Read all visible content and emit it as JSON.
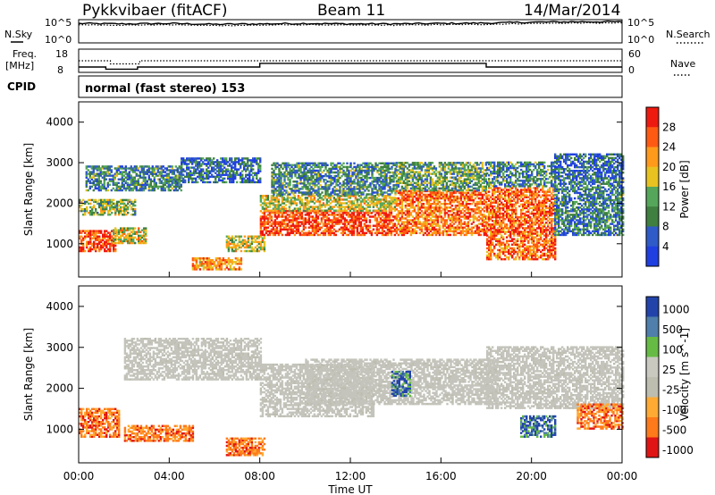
{
  "header": {
    "station": "Pykkvibaer (fitACF)",
    "beam": "Beam 11",
    "date": "14/Mar/2014"
  },
  "colors": {
    "power_scale": [
      "#1f3fe0",
      "#2f5bc8",
      "#3f7f3f",
      "#55a65a",
      "#e8c220",
      "#ff9a1a",
      "#ff5a12",
      "#ee1a10"
    ],
    "velocity_scale": [
      "#e01414",
      "#ff7a1a",
      "#ffaa33",
      "#bdbdb0",
      "#c9c9c0",
      "#66bb44",
      "#4f7faa",
      "#2244aa"
    ],
    "ground_scatter": "#c4c4bc"
  },
  "chart_data": [
    {
      "type": "line",
      "name": "noise-panel",
      "left_label": "N.Sky",
      "right_label": "N.Search",
      "left_ticks": [
        "10^5",
        "10^0"
      ],
      "right_ticks": [
        "10^5",
        "10^0"
      ],
      "series": [
        {
          "name": "N.Sky",
          "style": "solid",
          "x": [
            0,
            2,
            4,
            6,
            8,
            10,
            12,
            14,
            16,
            18,
            20,
            22,
            24
          ],
          "y": [
            4.6,
            4.5,
            4.6,
            4.4,
            4.5,
            4.6,
            4.5,
            4.5,
            4.6,
            4.7,
            4.9,
            5.0,
            5.0
          ]
        },
        {
          "name": "N.Search",
          "style": "dotted",
          "x": [
            0,
            2,
            4,
            6,
            8,
            10,
            12,
            14,
            16,
            18,
            20,
            22,
            24
          ],
          "y": [
            4.3,
            4.2,
            4.3,
            4.1,
            4.2,
            4.3,
            4.2,
            4.2,
            4.3,
            4.4,
            4.6,
            4.7,
            4.7
          ]
        }
      ]
    },
    {
      "type": "line",
      "name": "frequency-nave-panel",
      "left_label": "Freq.\n[MHz]",
      "right_label": "Nave",
      "left_ticks": [
        "18",
        "8"
      ],
      "right_ticks": [
        "60",
        "0"
      ],
      "series": [
        {
          "name": "Freq.",
          "style": "solid",
          "x": [
            0,
            1.2,
            1.2,
            2.6,
            2.6,
            8.0,
            8.0,
            18.0,
            18.0,
            24
          ],
          "y": [
            10.3,
            10.3,
            9.4,
            9.4,
            10.3,
            10.3,
            11.9,
            11.9,
            10.3,
            10.3
          ]
        },
        {
          "name": "Nave",
          "style": "dotted",
          "x": [
            0,
            1.4,
            1.4,
            2.7,
            2.7,
            24
          ],
          "y": [
            30,
            30,
            22,
            22,
            30,
            30
          ]
        }
      ]
    },
    {
      "type": "text",
      "name": "cpid-panel",
      "label": "CPID",
      "value": "normal (fast stereo) 153"
    },
    {
      "type": "heatmap",
      "name": "power-panel",
      "ylabel": "Slant Range [km]",
      "y_ticks": [
        "1000",
        "2000",
        "3000",
        "4000"
      ],
      "ylim": [
        180,
        4500
      ],
      "xlim": [
        0,
        24
      ],
      "colorbar": {
        "label": "Power [dB]",
        "ticks": [
          "4",
          "8",
          "12",
          "16",
          "20",
          "24",
          "28"
        ],
        "range": [
          0,
          32
        ]
      },
      "regions": [
        {
          "t0": 0.0,
          "t1": 1.6,
          "r0": 800,
          "r1": 1300,
          "level": 0.85
        },
        {
          "t0": 0.0,
          "t1": 2.5,
          "r0": 1700,
          "r1": 2100,
          "level": 0.45
        },
        {
          "t0": 0.3,
          "t1": 4.5,
          "r0": 2300,
          "r1": 2900,
          "level": 0.3
        },
        {
          "t0": 1.5,
          "t1": 3.0,
          "r0": 1000,
          "r1": 1400,
          "level": 0.55
        },
        {
          "t0": 5.0,
          "t1": 7.2,
          "r0": 350,
          "r1": 650,
          "level": 0.72
        },
        {
          "t0": 4.5,
          "t1": 8.0,
          "r0": 2500,
          "r1": 3100,
          "level": 0.22
        },
        {
          "t0": 6.5,
          "t1": 8.2,
          "r0": 800,
          "r1": 1200,
          "level": 0.55
        },
        {
          "t0": 8.0,
          "t1": 14.0,
          "r0": 1200,
          "r1": 1800,
          "level": 0.88
        },
        {
          "t0": 8.0,
          "t1": 14.0,
          "r0": 1800,
          "r1": 2200,
          "level": 0.55
        },
        {
          "t0": 8.5,
          "t1": 14.0,
          "r0": 2200,
          "r1": 3000,
          "level": 0.3
        },
        {
          "t0": 14.0,
          "t1": 18.0,
          "r0": 1200,
          "r1": 2300,
          "level": 0.78
        },
        {
          "t0": 14.0,
          "t1": 18.0,
          "r0": 2300,
          "r1": 3000,
          "level": 0.38
        },
        {
          "t0": 18.0,
          "t1": 21.0,
          "r0": 600,
          "r1": 2400,
          "level": 0.8
        },
        {
          "t0": 18.0,
          "t1": 21.0,
          "r0": 2400,
          "r1": 3000,
          "level": 0.3
        },
        {
          "t0": 21.0,
          "t1": 24.0,
          "r0": 1200,
          "r1": 2600,
          "level": 0.28
        },
        {
          "t0": 21.0,
          "t1": 24.0,
          "r0": 2600,
          "r1": 3200,
          "level": 0.18
        }
      ]
    },
    {
      "type": "heatmap",
      "name": "velocity-panel",
      "ylabel": "Slant Range [km]",
      "xlabel": "Time UT",
      "y_ticks": [
        "1000",
        "2000",
        "3000",
        "4000"
      ],
      "x_ticks": [
        "00:00",
        "04:00",
        "08:00",
        "12:00",
        "16:00",
        "20:00",
        "00:00"
      ],
      "ylim": [
        180,
        4500
      ],
      "xlim": [
        0,
        24
      ],
      "colorbar": {
        "label": "Velocity [m s^-1]",
        "ticks": [
          "1000",
          "500",
          "100",
          "25",
          "-25",
          "-100",
          "-500",
          "-1000"
        ]
      },
      "regions": [
        {
          "t0": 0.0,
          "t1": 1.8,
          "r0": 800,
          "r1": 1500,
          "kind": "neg"
        },
        {
          "t0": 2.0,
          "t1": 5.0,
          "r0": 700,
          "r1": 1100,
          "kind": "neg"
        },
        {
          "t0": 6.5,
          "t1": 8.2,
          "r0": 350,
          "r1": 800,
          "kind": "neg"
        },
        {
          "t0": 2.0,
          "t1": 8.0,
          "r0": 2200,
          "r1": 3200,
          "kind": "ground"
        },
        {
          "t0": 8.0,
          "t1": 13.0,
          "r0": 1300,
          "r1": 2600,
          "kind": "ground"
        },
        {
          "t0": 10.0,
          "t1": 18.5,
          "r0": 1600,
          "r1": 2700,
          "kind": "ground"
        },
        {
          "t0": 13.8,
          "t1": 14.6,
          "r0": 1800,
          "r1": 2400,
          "kind": "pos"
        },
        {
          "t0": 18.0,
          "t1": 24.0,
          "r0": 1500,
          "r1": 3000,
          "kind": "ground"
        },
        {
          "t0": 19.5,
          "t1": 21.0,
          "r0": 800,
          "r1": 1300,
          "kind": "pos"
        },
        {
          "t0": 22.0,
          "t1": 24.0,
          "r0": 1000,
          "r1": 1600,
          "kind": "neg"
        }
      ]
    }
  ]
}
